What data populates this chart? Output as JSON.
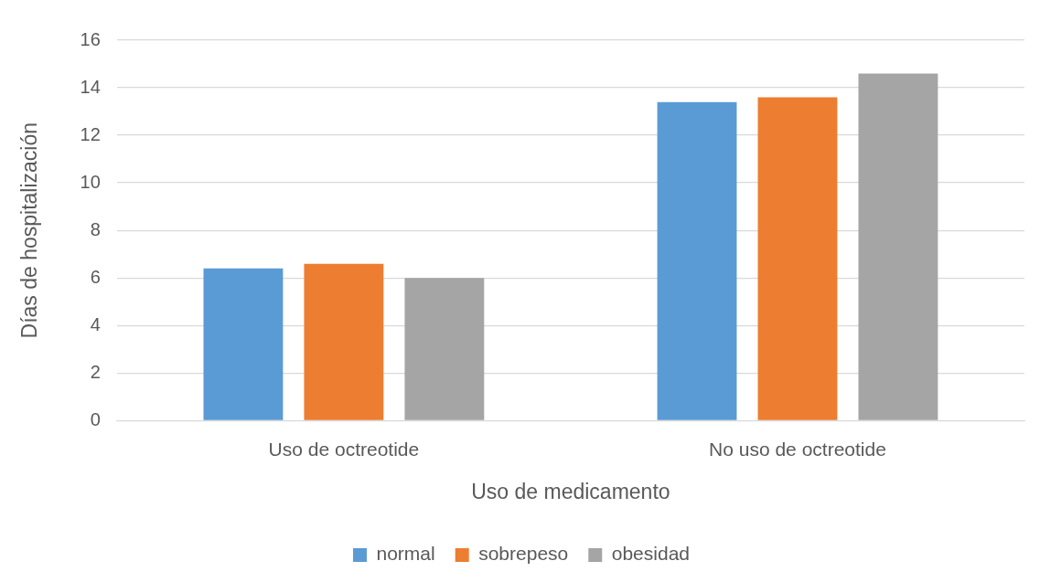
{
  "chart_data": {
    "type": "bar",
    "xlabel": "Uso de medicamento",
    "ylabel": "Días de hospitalización",
    "categories": [
      "Uso de octreotide",
      "No uso de octreotide"
    ],
    "series": [
      {
        "name": "normal",
        "color": "#5b9bd5",
        "values": [
          6.4,
          13.4
        ]
      },
      {
        "name": "sobrepeso",
        "color": "#ed7d31",
        "values": [
          6.6,
          13.6
        ]
      },
      {
        "name": "obesidad",
        "color": "#a5a5a5",
        "values": [
          6.0,
          14.6
        ]
      }
    ],
    "ylim": [
      0,
      16
    ],
    "yticks": [
      0,
      2,
      4,
      6,
      8,
      10,
      12,
      14,
      16
    ],
    "grid": "y",
    "legend": "bottom"
  }
}
